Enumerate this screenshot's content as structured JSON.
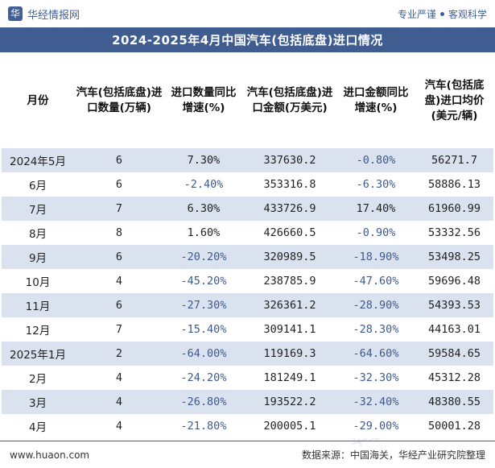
{
  "header": {
    "logo_glyph": "华",
    "brand": "华经情报网",
    "tag1": "专业严谨",
    "tag2": "客观科学"
  },
  "title": "2024-2025年4月中国汽车(包括底盘)进口情况",
  "table": {
    "columns": [
      "月份",
      "汽车(包括底盘)进口数量(万辆)",
      "进口数量同比增速(%)",
      "汽车(包括底盘)进口金额(万美元)",
      "进口金额同比增速(%)",
      "汽车(包括底盘)进口均价(美元/辆)"
    ],
    "rows": [
      {
        "month": "2024年5月",
        "qty": "6",
        "qty_yoy": "7.30%",
        "amount": "337630.2",
        "amount_yoy": "-0.80%",
        "price": "56271.7"
      },
      {
        "month": "6月",
        "qty": "6",
        "qty_yoy": "-2.40%",
        "amount": "353316.8",
        "amount_yoy": "-6.30%",
        "price": "58886.13"
      },
      {
        "month": "7月",
        "qty": "7",
        "qty_yoy": "6.30%",
        "amount": "433726.9",
        "amount_yoy": "17.40%",
        "price": "61960.99"
      },
      {
        "month": "8月",
        "qty": "8",
        "qty_yoy": "1.60%",
        "amount": "426660.5",
        "amount_yoy": "-0.90%",
        "price": "53332.56"
      },
      {
        "month": "9月",
        "qty": "6",
        "qty_yoy": "-20.20%",
        "amount": "320989.5",
        "amount_yoy": "-18.90%",
        "price": "53498.25"
      },
      {
        "month": "10月",
        "qty": "4",
        "qty_yoy": "-45.20%",
        "amount": "238785.9",
        "amount_yoy": "-47.60%",
        "price": "59696.48"
      },
      {
        "month": "11月",
        "qty": "6",
        "qty_yoy": "-27.30%",
        "amount": "326361.2",
        "amount_yoy": "-28.90%",
        "price": "54393.53"
      },
      {
        "month": "12月",
        "qty": "7",
        "qty_yoy": "-15.40%",
        "amount": "309141.1",
        "amount_yoy": "-28.30%",
        "price": "44163.01"
      },
      {
        "month": "2025年1月",
        "qty": "2",
        "qty_yoy": "-64.00%",
        "amount": "119169.3",
        "amount_yoy": "-64.60%",
        "price": "59584.65"
      },
      {
        "month": "2月",
        "qty": "4",
        "qty_yoy": "-24.20%",
        "amount": "181249.1",
        "amount_yoy": "-32.30%",
        "price": "45312.28"
      },
      {
        "month": "3月",
        "qty": "4",
        "qty_yoy": "-26.80%",
        "amount": "193522.2",
        "amount_yoy": "-32.40%",
        "price": "48380.55"
      },
      {
        "month": "4月",
        "qty": "4",
        "qty_yoy": "-21.80%",
        "amount": "200005.1",
        "amount_yoy": "-29.00%",
        "price": "50001.28"
      }
    ]
  },
  "watermark": "华经产业研究院",
  "footer": {
    "url": "www.huaon.com",
    "source": "数据来源：中国海关，华经产业研究院整理"
  },
  "colors": {
    "accent": "#405d91",
    "stripe": "#dbe2ef",
    "negative_text": "#3d5a8c"
  }
}
